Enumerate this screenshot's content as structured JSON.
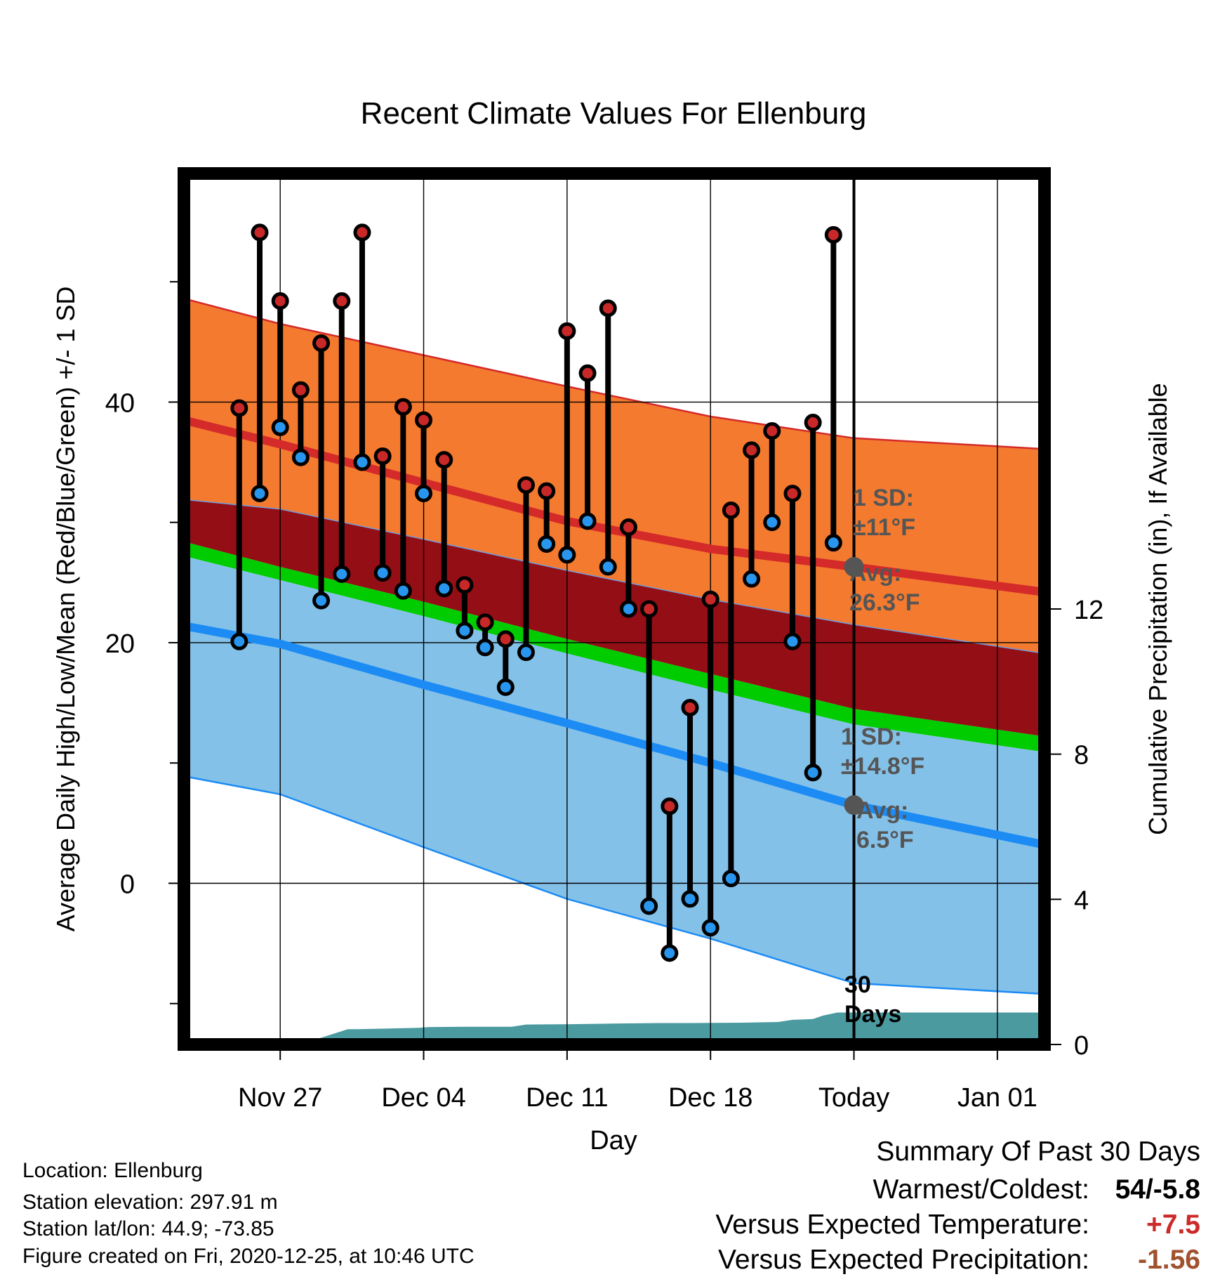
{
  "chart_data": {
    "type": "line",
    "title": "Recent Climate Values For Ellenburg",
    "xlabel": "Day",
    "ylabel_left": "Average Daily High/Low/Mean (Red/Blue/Green) +/- 1 SD",
    "ylabel_right": "Cumulative Precipitation (in), If Available",
    "x_range": [
      -4.7,
      37.3
    ],
    "ylim_left": [
      -13.4,
      59
    ],
    "ylim_right": [
      0,
      24
    ],
    "x_ticks": [
      {
        "day": 0,
        "label": "Nov 27"
      },
      {
        "day": 7,
        "label": "Dec 04"
      },
      {
        "day": 14,
        "label": "Dec 11"
      },
      {
        "day": 21,
        "label": "Dec 18"
      },
      {
        "day": 28,
        "label": "Today"
      },
      {
        "day": 35,
        "label": "Jan 01"
      }
    ],
    "y_ticks_left": [
      0,
      20,
      40
    ],
    "y_minor_ticks_left": [
      -10,
      10,
      30,
      50
    ],
    "y_ticks_right": [
      0,
      4,
      8,
      12
    ],
    "today_day": 28,
    "normals": {
      "day": [
        -4.7,
        0,
        7,
        14,
        21,
        28,
        37.3
      ],
      "high_plus_sd": [
        48.6,
        46.5,
        43.9,
        41.3,
        38.8,
        37.0,
        36.1
      ],
      "high_mean": [
        38.5,
        36.5,
        33.3,
        30.1,
        27.8,
        26.3,
        24.2
      ],
      "mean_line": [
        31.9,
        31.1,
        28.6,
        26.0,
        23.6,
        21.5,
        19.1
      ],
      "green_top": [
        28.4,
        26.3,
        23.4,
        20.3,
        17.4,
        14.5,
        12.2
      ],
      "green_bottom": [
        27.2,
        25.2,
        22.2,
        19.1,
        16.1,
        13.2,
        10.9
      ],
      "low_mean": [
        21.4,
        19.9,
        16.5,
        13.3,
        10.0,
        6.5,
        3.2
      ],
      "low_minus_sd": [
        8.9,
        7.4,
        3.0,
        -1.3,
        -4.6,
        -8.3,
        -9.2
      ]
    },
    "series": [
      {
        "name": "High",
        "values": [
          {
            "day": -2,
            "value": 39.5
          },
          {
            "day": -1,
            "value": 54.1
          },
          {
            "day": 0,
            "value": 48.4
          },
          {
            "day": 1,
            "value": 41.0
          },
          {
            "day": 2,
            "value": 44.9
          },
          {
            "day": 3,
            "value": 48.4
          },
          {
            "day": 4,
            "value": 54.1
          },
          {
            "day": 5,
            "value": 35.5
          },
          {
            "day": 6,
            "value": 39.6
          },
          {
            "day": 7,
            "value": 38.5
          },
          {
            "day": 8,
            "value": 35.2
          },
          {
            "day": 9,
            "value": 24.8
          },
          {
            "day": 10,
            "value": 21.7
          },
          {
            "day": 11,
            "value": 20.3
          },
          {
            "day": 12,
            "value": 33.1
          },
          {
            "day": 13,
            "value": 32.6
          },
          {
            "day": 14,
            "value": 45.9
          },
          {
            "day": 15,
            "value": 42.4
          },
          {
            "day": 16,
            "value": 47.8
          },
          {
            "day": 17,
            "value": 29.6
          },
          {
            "day": 18,
            "value": 22.8
          },
          {
            "day": 19,
            "value": 6.4
          },
          {
            "day": 20,
            "value": 14.6
          },
          {
            "day": 21,
            "value": 23.6
          },
          {
            "day": 22,
            "value": 31.0
          },
          {
            "day": 23,
            "value": 36.0
          },
          {
            "day": 24,
            "value": 37.6
          },
          {
            "day": 25,
            "value": 32.4
          },
          {
            "day": 26,
            "value": 38.3
          },
          {
            "day": 27,
            "value": 53.9
          }
        ]
      },
      {
        "name": "Low",
        "values": [
          {
            "day": -2,
            "value": 20.1
          },
          {
            "day": -1,
            "value": 32.4
          },
          {
            "day": 0,
            "value": 37.9
          },
          {
            "day": 1,
            "value": 35.4
          },
          {
            "day": 2,
            "value": 23.5
          },
          {
            "day": 3,
            "value": 25.7
          },
          {
            "day": 4,
            "value": 35.0
          },
          {
            "day": 5,
            "value": 25.8
          },
          {
            "day": 6,
            "value": 24.3
          },
          {
            "day": 7,
            "value": 32.4
          },
          {
            "day": 8,
            "value": 24.5
          },
          {
            "day": 9,
            "value": 21.0
          },
          {
            "day": 10,
            "value": 19.6
          },
          {
            "day": 11,
            "value": 16.3
          },
          {
            "day": 12,
            "value": 19.2
          },
          {
            "day": 13,
            "value": 28.2
          },
          {
            "day": 14,
            "value": 27.3
          },
          {
            "day": 15,
            "value": 30.1
          },
          {
            "day": 16,
            "value": 26.3
          },
          {
            "day": 17,
            "value": 22.8
          },
          {
            "day": 18,
            "value": -1.9
          },
          {
            "day": 19,
            "value": -5.8
          },
          {
            "day": 20,
            "value": -1.3
          },
          {
            "day": 21,
            "value": -3.7
          },
          {
            "day": 22,
            "value": 0.4
          },
          {
            "day": 23,
            "value": 25.3
          },
          {
            "day": 24,
            "value": 30.0
          },
          {
            "day": 25,
            "value": 20.1
          },
          {
            "day": 26,
            "value": 9.2
          },
          {
            "day": 27,
            "value": 28.3
          }
        ]
      },
      {
        "name": "Cumulative Precipitation",
        "values": [
          {
            "day": -2.3,
            "value": 0.0
          },
          {
            "day": -0.3,
            "value": 0.1
          },
          {
            "day": 0.2,
            "value": 0.15
          },
          {
            "day": 1.8,
            "value": 0.15
          },
          {
            "day": 3.3,
            "value": 0.42
          },
          {
            "day": 3.8,
            "value": 0.42
          },
          {
            "day": 5.3,
            "value": 0.44
          },
          {
            "day": 6.8,
            "value": 0.46
          },
          {
            "day": 7.2,
            "value": 0.48
          },
          {
            "day": 9.1,
            "value": 0.49
          },
          {
            "day": 10.5,
            "value": 0.49
          },
          {
            "day": 11.3,
            "value": 0.49
          },
          {
            "day": 12.0,
            "value": 0.55
          },
          {
            "day": 14.2,
            "value": 0.56
          },
          {
            "day": 16.8,
            "value": 0.58
          },
          {
            "day": 18.5,
            "value": 0.59
          },
          {
            "day": 20.0,
            "value": 0.59
          },
          {
            "day": 22.5,
            "value": 0.6
          },
          {
            "day": 24.3,
            "value": 0.62
          },
          {
            "day": 25.0,
            "value": 0.68
          },
          {
            "day": 26.0,
            "value": 0.7
          },
          {
            "day": 26.5,
            "value": 0.8
          },
          {
            "day": 27.2,
            "value": 0.88
          },
          {
            "day": 28.0,
            "value": 0.88
          },
          {
            "day": 37.3,
            "value": 0.88
          }
        ]
      }
    ],
    "annotations": {
      "high_sd_label": "1 SD:\n±11°F",
      "high_avg_label": "Avg:\n26.3°F",
      "high_avg_value": 26.3,
      "low_sd_label": "1 SD:\n±14.8°F",
      "low_avg_label": "Avg:\n6.5°F",
      "low_avg_value": 6.5,
      "precip_label": "30\nDays"
    },
    "colors": {
      "high_band": "#f47a2f",
      "mean_band": "#940e16",
      "green_band": "#00cc00",
      "low_band": "#84c1e8",
      "high_line": "#d42a2a",
      "low_line": "#1c8cf4",
      "high_dot": "#c82828",
      "low_dot": "#2896ee",
      "precip_fill": "#4a9aa0",
      "annotation_text": "#555555",
      "avg_marker": "#555555"
    }
  },
  "meta": {
    "location": "Location: Ellenburg",
    "elevation": "Station elevation: 297.91 m",
    "latlon": "Station lat/lon: 44.9; -73.85",
    "created": "Figure created on Fri, 2020-12-25, at 10:46 UTC"
  },
  "summary": {
    "title": "Summary Of Past 30 Days",
    "warmest_coldest_label": "Warmest/Coldest:",
    "warmest_coldest_value": "54/-5.8",
    "temp_label": "Versus Expected Temperature:",
    "temp_value": "+7.5",
    "precip_label": "Versus Expected Precipitation:",
    "precip_value": "-1.56",
    "temp_value_color": "#cc2a2a",
    "precip_value_color": "#a0522d"
  }
}
